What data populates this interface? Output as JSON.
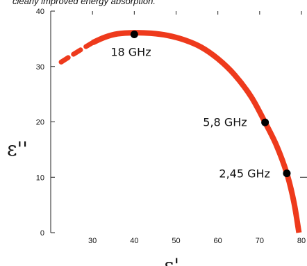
{
  "caption": "clearly improved energy absorption.",
  "chart_data": {
    "type": "line",
    "xlabel": "ε'",
    "ylabel": "ε''",
    "xlim": [
      20,
      80
    ],
    "ylim": [
      0,
      40
    ],
    "x_ticks": [
      30,
      40,
      50,
      60,
      70,
      80
    ],
    "x_tick_labels": [
      "30",
      "40",
      "50",
      "60",
      "70",
      "80"
    ],
    "y_ticks": [
      0,
      10,
      20,
      30,
      40
    ],
    "y_tick_labels": [
      "0",
      "10",
      "20",
      "30",
      "40"
    ],
    "grid": false,
    "series": [
      {
        "color": "#ee3a1c",
        "dashed_segment": {
          "x": [
            22.5,
            25,
            28,
            30
          ],
          "y": [
            30.8,
            32.0,
            33.4,
            34.3
          ]
        },
        "x": [
          30,
          33,
          36,
          40,
          44,
          48,
          52,
          56,
          60,
          64,
          68,
          71.3,
          74,
          76.5,
          78.2,
          79.4
        ],
        "y": [
          34.3,
          35.3,
          35.9,
          36.1,
          36.0,
          35.6,
          34.8,
          33.5,
          31.4,
          28.5,
          24.5,
          19.9,
          15.8,
          10.7,
          5.5,
          0
        ]
      }
    ],
    "points": [
      {
        "label": "18 GHz",
        "x": 40,
        "y": 35.8,
        "color": "#000000"
      },
      {
        "label": "5,8 GHz",
        "x": 71.3,
        "y": 19.9,
        "color": "#000000"
      },
      {
        "label": "2,45 GHz",
        "x": 76.5,
        "y": 10.7,
        "color": "#000000"
      }
    ]
  }
}
